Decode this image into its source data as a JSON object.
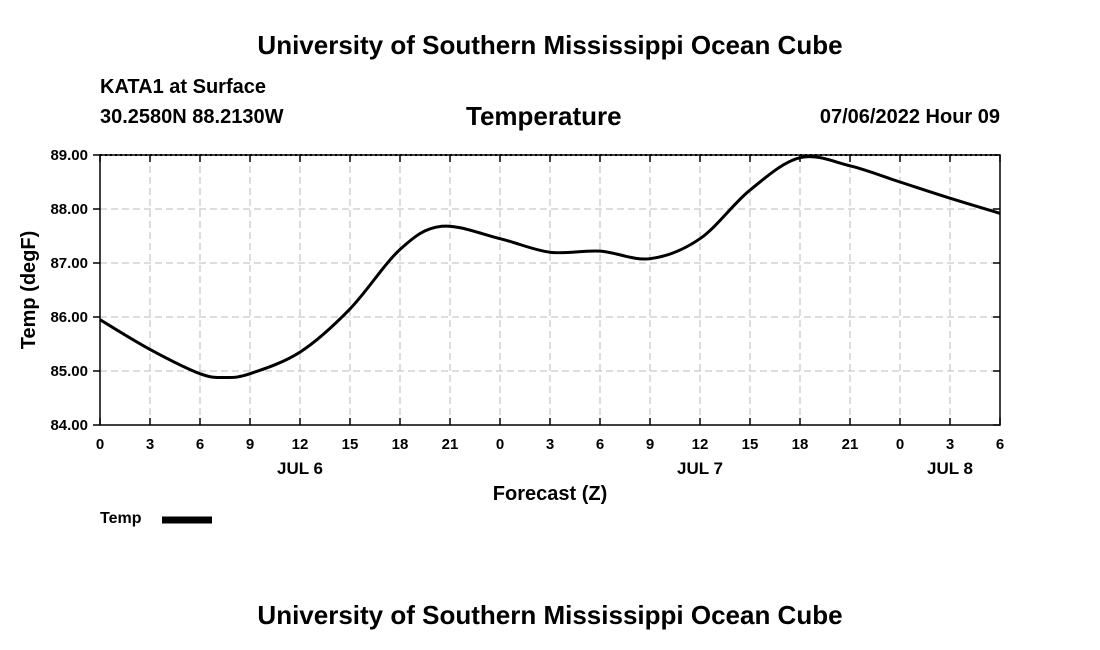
{
  "header": {
    "title": "University of Southern Mississippi Ocean Cube",
    "station": "KATA1 at Surface",
    "coords": "30.2580N  88.2130W",
    "chart_title": "Temperature",
    "timestamp": "07/06/2022 Hour 09"
  },
  "footer": {
    "title": "University of Southern Mississippi Ocean Cube"
  },
  "legend": {
    "label": "Temp"
  },
  "chart_data": {
    "type": "line",
    "title": "Temperature",
    "xlabel": "Forecast (Z)",
    "ylabel": "Temp (degF)",
    "xlim": [
      0,
      54
    ],
    "ylim": [
      84,
      89
    ],
    "x_ticks": [
      {
        "x": 0,
        "label": "0"
      },
      {
        "x": 3,
        "label": "3"
      },
      {
        "x": 6,
        "label": "6"
      },
      {
        "x": 9,
        "label": "9"
      },
      {
        "x": 12,
        "label": "12"
      },
      {
        "x": 15,
        "label": "15"
      },
      {
        "x": 18,
        "label": "18"
      },
      {
        "x": 21,
        "label": "21"
      },
      {
        "x": 24,
        "label": "0"
      },
      {
        "x": 27,
        "label": "3"
      },
      {
        "x": 30,
        "label": "6"
      },
      {
        "x": 33,
        "label": "9"
      },
      {
        "x": 36,
        "label": "12"
      },
      {
        "x": 39,
        "label": "15"
      },
      {
        "x": 42,
        "label": "18"
      },
      {
        "x": 45,
        "label": "21"
      },
      {
        "x": 48,
        "label": "0"
      },
      {
        "x": 51,
        "label": "3"
      },
      {
        "x": 54,
        "label": "6"
      }
    ],
    "day_labels": [
      {
        "x": 12,
        "label": "JUL 6"
      },
      {
        "x": 36,
        "label": "JUL 7"
      },
      {
        "x": 51,
        "label": "JUL 8"
      }
    ],
    "y_ticks": [
      {
        "y": 84,
        "label": "84.00"
      },
      {
        "y": 85,
        "label": "85.00"
      },
      {
        "y": 86,
        "label": "86.00"
      },
      {
        "y": 87,
        "label": "87.00"
      },
      {
        "y": 88,
        "label": "88.00"
      },
      {
        "y": 89,
        "label": "89.00"
      }
    ],
    "grid": true,
    "series": [
      {
        "name": "Temp",
        "color": "#000000",
        "x": [
          0,
          3,
          6,
          7.5,
          9,
          12,
          15,
          18,
          20.5,
          24,
          27,
          30,
          33,
          36,
          39,
          42,
          45,
          48,
          51,
          54
        ],
        "y": [
          85.95,
          85.4,
          84.95,
          84.88,
          84.95,
          85.35,
          86.15,
          87.25,
          87.68,
          87.45,
          87.2,
          87.22,
          87.08,
          87.45,
          88.35,
          88.95,
          88.8,
          88.5,
          88.2,
          87.92
        ]
      }
    ]
  }
}
